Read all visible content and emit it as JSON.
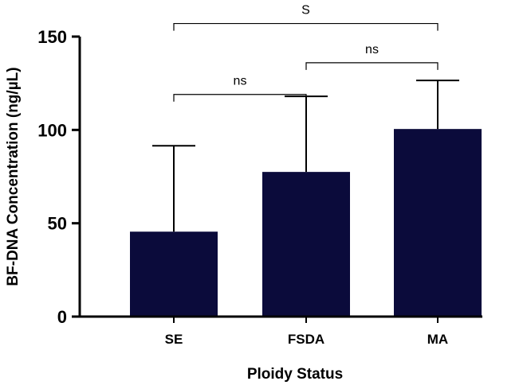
{
  "chart_data": {
    "type": "bar",
    "categories": [
      "SE",
      "FSDA",
      "MA"
    ],
    "values": [
      45.5,
      77.5,
      100.5
    ],
    "error_upper": [
      91.5,
      118,
      126.5
    ],
    "xlabel": "Ploidy Status",
    "ylabel": "BF-DNA Concentration (ng/µL)",
    "ylim": [
      0,
      150
    ],
    "yticks": [
      0,
      50,
      100,
      150
    ],
    "bar_color": "#0b0b3b",
    "grid": false,
    "legend": "none",
    "significance": [
      {
        "from": "SE",
        "to": "FSDA",
        "label": "ns",
        "level": 119
      },
      {
        "from": "FSDA",
        "to": "MA",
        "label": "ns",
        "level": 136
      },
      {
        "from": "SE",
        "to": "MA",
        "label": "S",
        "level": 157
      }
    ]
  }
}
